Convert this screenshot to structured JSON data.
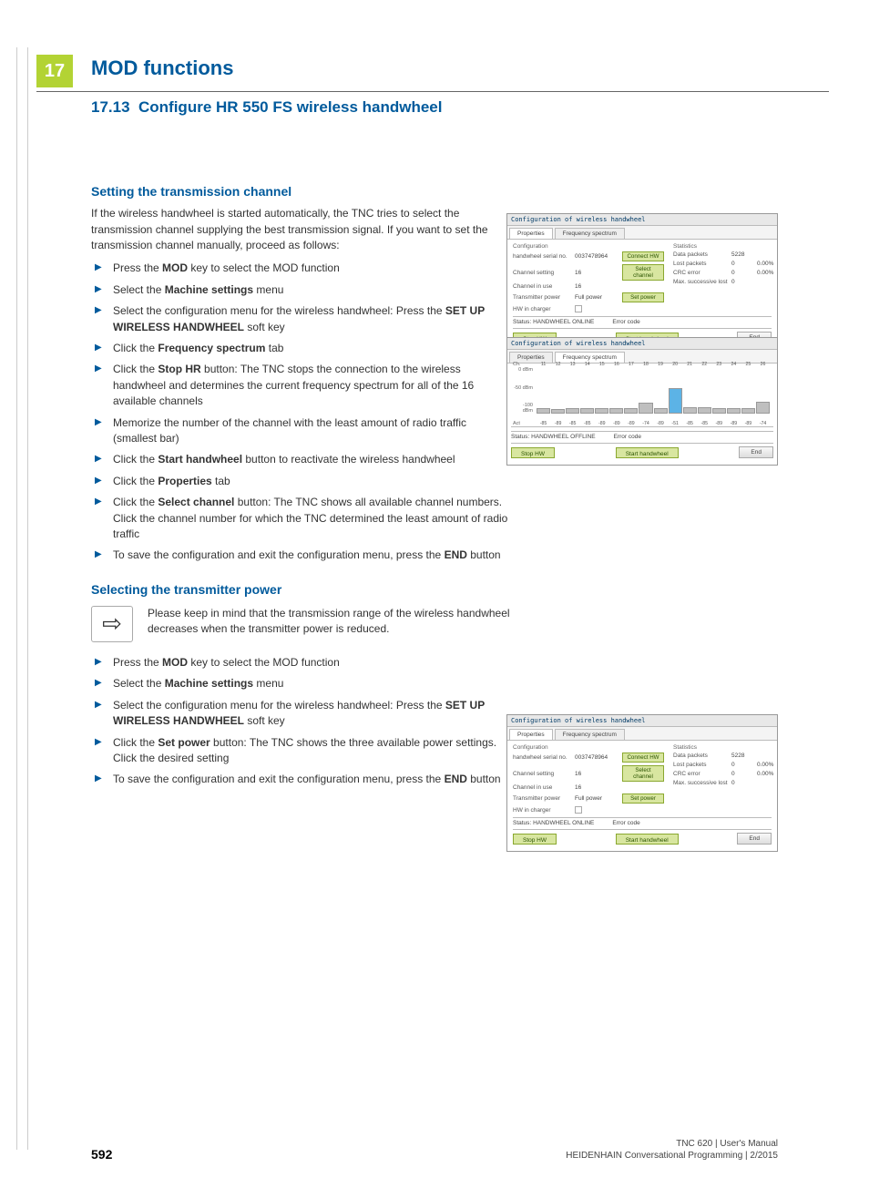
{
  "chapter": {
    "number": "17",
    "title": "MOD functions"
  },
  "section": {
    "number": "17.13",
    "title": "Configure HR 550 FS wireless handwheel"
  },
  "block1": {
    "heading": "Setting the transmission channel",
    "intro": "If the wireless handwheel is started automatically, the TNC tries to select the transmission channel supplying the best transmission signal. If you want to set the transmission channel manually, proceed as follows:",
    "steps": [
      {
        "pre": "Press the ",
        "bold": "MOD",
        "post": " key to select the MOD function"
      },
      {
        "pre": "Select the ",
        "bold": "Machine settings",
        "post": " menu"
      },
      {
        "pre": "Select the configuration menu for the wireless handwheel: Press the ",
        "bold": "SET UP WIRELESS HANDWHEEL",
        "post": " soft key"
      },
      {
        "pre": "Click the ",
        "bold": "Frequency spectrum",
        "post": " tab"
      },
      {
        "pre": "Click the ",
        "bold": "Stop HR",
        "post": " button: The TNC stops the connection to the wireless handwheel and determines the current frequency spectrum for all of the 16 available channels"
      },
      {
        "pre": "Memorize the number of the channel with the least amount of radio traffic (smallest bar)",
        "bold": "",
        "post": ""
      },
      {
        "pre": "Click the ",
        "bold": "Start handwheel",
        "post": " button to reactivate the wireless handwheel"
      },
      {
        "pre": "Click the ",
        "bold": "Properties",
        "post": " tab"
      },
      {
        "pre": "Click the ",
        "bold": "Select channel",
        "post": " button: The TNC shows all available channel numbers. Click the channel number for which the TNC determined the least amount of radio traffic"
      },
      {
        "pre": "To save the configuration and exit the configuration menu, press the ",
        "bold": "END",
        "post": " button"
      }
    ]
  },
  "block2": {
    "heading": "Selecting the transmitter power",
    "note": "Please keep in mind that the transmission range of the wireless handwheel decreases when the transmitter power is reduced.",
    "steps": [
      {
        "pre": "Press the ",
        "bold": "MOD",
        "post": " key to select the MOD function"
      },
      {
        "pre": "Select the ",
        "bold": "Machine settings",
        "post": " menu"
      },
      {
        "pre": "Select the configuration menu for the wireless handwheel: Press the ",
        "bold": "SET UP WIRELESS HANDWHEEL",
        "post": " soft key"
      },
      {
        "pre": "Click the ",
        "bold": "Set power",
        "post": " button: The TNC shows the three available power settings. Click the desired setting"
      },
      {
        "pre": "To save the configuration and exit the configuration menu, press the ",
        "bold": "END",
        "post": " button"
      }
    ]
  },
  "dialog": {
    "title": "Configuration of wireless handwheel",
    "tabs": {
      "properties": "Properties",
      "spectrum": "Frequency spectrum"
    },
    "labels": {
      "config": "Configuration",
      "serial": "handwheel serial no.",
      "ch_setting": "Channel setting",
      "ch_use": "Channel in use",
      "tx_power": "Transmitter power",
      "in_charger": "HW in charger",
      "stats": "Statistics",
      "data_packets": "Data packets",
      "lost_packets": "Lost packets",
      "crc": "CRC error",
      "max_lost": "Max. successive lost",
      "status": "Status",
      "err": "Error code"
    },
    "values": {
      "serial": "0037478964",
      "ch_setting": "16",
      "ch_use": "16",
      "tx_power": "Full power",
      "data_packets": "5228",
      "lost_packets": "0",
      "lost_pct": "0.00%",
      "crc": "0",
      "crc_pct": "0.00%",
      "max_lost": "0",
      "online": "HANDWHEEL ONLINE",
      "offline": "HANDWHEEL OFFLINE"
    },
    "buttons": {
      "connect": "Connect HW",
      "select_ch": "Select channel",
      "set_power": "Set power",
      "stop": "Stop HW",
      "start": "Start handwheel",
      "end": "End"
    }
  },
  "spectrum": {
    "y": {
      "top": "0 dBm",
      "mid": "-50 dBm",
      "low": "-100 dBm"
    },
    "axis_left_top": "Ch.",
    "axis_left_bot": "Act",
    "channels": [
      "11",
      "12",
      "13",
      "14",
      "15",
      "16",
      "17",
      "18",
      "19",
      "20",
      "21",
      "22",
      "23",
      "24",
      "25",
      "26"
    ],
    "act": [
      "-85",
      "-89",
      "-85",
      "-85",
      "-89",
      "-89",
      "-89",
      "-74",
      "-89",
      "-51",
      "-85",
      "-85",
      "-89",
      "-89",
      "-89",
      "-74"
    ],
    "heights_pct": [
      12,
      10,
      12,
      12,
      11,
      11,
      11,
      24,
      11,
      55,
      14,
      13,
      12,
      11,
      11,
      25
    ],
    "max_index": 9,
    "bar_color": "#bfbfbf",
    "bar_max_color": "#5cb3e6",
    "border_color": "#999999"
  },
  "shots": {
    "top1": 234,
    "top2": 370,
    "top3": 784
  },
  "footer": {
    "page": "592",
    "r1": "TNC 620 | User's Manual",
    "r2": "HEIDENHAIN Conversational Programming | 2/2015"
  }
}
